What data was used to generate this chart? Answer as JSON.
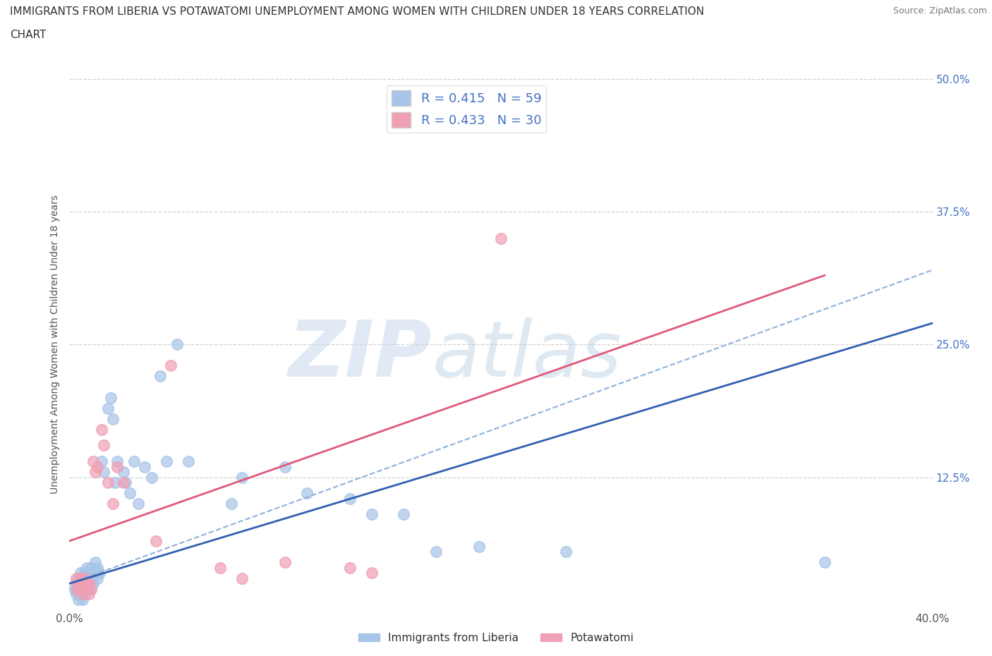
{
  "title_line1": "IMMIGRANTS FROM LIBERIA VS POTAWATOMI UNEMPLOYMENT AMONG WOMEN WITH CHILDREN UNDER 18 YEARS CORRELATION",
  "title_line2": "CHART",
  "source": "Source: ZipAtlas.com",
  "ylabel": "Unemployment Among Women with Children Under 18 years",
  "xlim": [
    0.0,
    0.4
  ],
  "ylim": [
    0.0,
    0.5
  ],
  "xticks": [
    0.0,
    0.1,
    0.2,
    0.3,
    0.4
  ],
  "xtick_labels": [
    "0.0%",
    "",
    "",
    "",
    "40.0%"
  ],
  "yticks": [
    0.0,
    0.125,
    0.25,
    0.375,
    0.5
  ],
  "ytick_labels": [
    "",
    "12.5%",
    "25.0%",
    "37.5%",
    "50.0%"
  ],
  "blue_R": "0.415",
  "blue_N": "59",
  "pink_R": "0.433",
  "pink_N": "30",
  "blue_color": "#a8c4e8",
  "pink_color": "#f0a0b4",
  "blue_line_color": "#3060b0",
  "pink_line_color": "#e05878",
  "dash_line_color": "#90b0d8",
  "grid_color": "#cccccc",
  "blue_scatter": [
    [
      0.002,
      0.02
    ],
    [
      0.003,
      0.015
    ],
    [
      0.003,
      0.025
    ],
    [
      0.004,
      0.01
    ],
    [
      0.004,
      0.02
    ],
    [
      0.004,
      0.03
    ],
    [
      0.005,
      0.015
    ],
    [
      0.005,
      0.02
    ],
    [
      0.005,
      0.025
    ],
    [
      0.005,
      0.035
    ],
    [
      0.006,
      0.01
    ],
    [
      0.006,
      0.02
    ],
    [
      0.006,
      0.03
    ],
    [
      0.007,
      0.015
    ],
    [
      0.007,
      0.025
    ],
    [
      0.007,
      0.035
    ],
    [
      0.008,
      0.02
    ],
    [
      0.008,
      0.03
    ],
    [
      0.008,
      0.04
    ],
    [
      0.009,
      0.025
    ],
    [
      0.009,
      0.035
    ],
    [
      0.01,
      0.02
    ],
    [
      0.01,
      0.03
    ],
    [
      0.01,
      0.04
    ],
    [
      0.011,
      0.025
    ],
    [
      0.012,
      0.035
    ],
    [
      0.012,
      0.045
    ],
    [
      0.013,
      0.03
    ],
    [
      0.013,
      0.04
    ],
    [
      0.014,
      0.035
    ],
    [
      0.015,
      0.14
    ],
    [
      0.016,
      0.13
    ],
    [
      0.018,
      0.19
    ],
    [
      0.019,
      0.2
    ],
    [
      0.02,
      0.18
    ],
    [
      0.021,
      0.12
    ],
    [
      0.022,
      0.14
    ],
    [
      0.025,
      0.13
    ],
    [
      0.026,
      0.12
    ],
    [
      0.028,
      0.11
    ],
    [
      0.03,
      0.14
    ],
    [
      0.032,
      0.1
    ],
    [
      0.035,
      0.135
    ],
    [
      0.038,
      0.125
    ],
    [
      0.042,
      0.22
    ],
    [
      0.045,
      0.14
    ],
    [
      0.05,
      0.25
    ],
    [
      0.055,
      0.14
    ],
    [
      0.075,
      0.1
    ],
    [
      0.08,
      0.125
    ],
    [
      0.1,
      0.135
    ],
    [
      0.11,
      0.11
    ],
    [
      0.13,
      0.105
    ],
    [
      0.14,
      0.09
    ],
    [
      0.155,
      0.09
    ],
    [
      0.17,
      0.055
    ],
    [
      0.19,
      0.06
    ],
    [
      0.23,
      0.055
    ],
    [
      0.35,
      0.045
    ]
  ],
  "pink_scatter": [
    [
      0.003,
      0.02
    ],
    [
      0.003,
      0.03
    ],
    [
      0.004,
      0.025
    ],
    [
      0.005,
      0.02
    ],
    [
      0.005,
      0.03
    ],
    [
      0.006,
      0.015
    ],
    [
      0.006,
      0.025
    ],
    [
      0.007,
      0.02
    ],
    [
      0.007,
      0.03
    ],
    [
      0.008,
      0.025
    ],
    [
      0.009,
      0.015
    ],
    [
      0.009,
      0.025
    ],
    [
      0.01,
      0.02
    ],
    [
      0.011,
      0.14
    ],
    [
      0.012,
      0.13
    ],
    [
      0.013,
      0.135
    ],
    [
      0.015,
      0.17
    ],
    [
      0.016,
      0.155
    ],
    [
      0.018,
      0.12
    ],
    [
      0.02,
      0.1
    ],
    [
      0.022,
      0.135
    ],
    [
      0.025,
      0.12
    ],
    [
      0.04,
      0.065
    ],
    [
      0.047,
      0.23
    ],
    [
      0.07,
      0.04
    ],
    [
      0.08,
      0.03
    ],
    [
      0.13,
      0.04
    ],
    [
      0.14,
      0.035
    ],
    [
      0.2,
      0.35
    ],
    [
      0.1,
      0.045
    ]
  ],
  "blue_line_solid": [
    [
      0.0,
      0.025
    ],
    [
      0.4,
      0.27
    ]
  ],
  "pink_line_solid": [
    [
      0.0,
      0.065
    ],
    [
      0.35,
      0.315
    ]
  ],
  "dash_line": [
    [
      0.0,
      0.025
    ],
    [
      0.4,
      0.32
    ]
  ]
}
